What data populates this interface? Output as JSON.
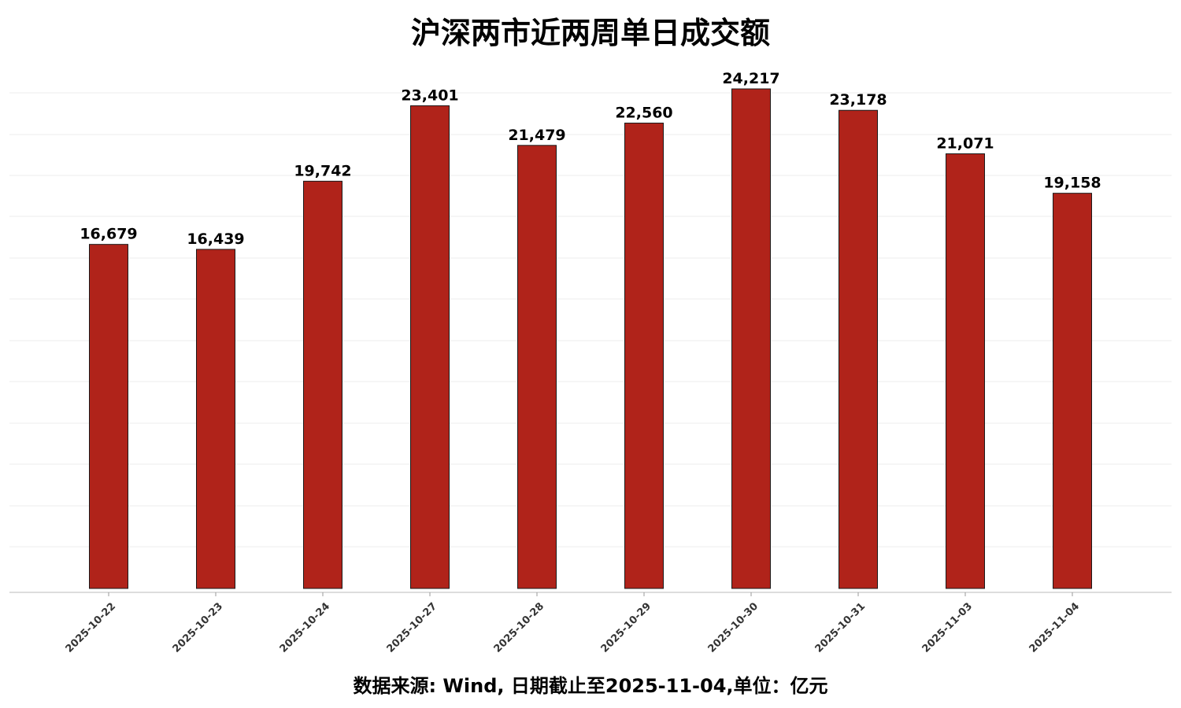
{
  "chart_data": {
    "type": "bar",
    "title": "沪深两市近两周单日成交额",
    "xlabel": "",
    "ylabel": "",
    "categories": [
      "2025-10-22",
      "2025-10-23",
      "2025-10-24",
      "2025-10-27",
      "2025-10-28",
      "2025-10-29",
      "2025-10-30",
      "2025-10-31",
      "2025-11-03",
      "2025-11-04"
    ],
    "values": [
      16679,
      16439,
      19742,
      23401,
      21479,
      22560,
      24217,
      23178,
      21071,
      19158
    ],
    "value_labels": [
      "16,679",
      "16,439",
      "19,742",
      "23,401",
      "21,479",
      "22,560",
      "24,217",
      "23,178",
      "21,071",
      "19,158"
    ],
    "ylim": [
      0,
      24217
    ],
    "grid": true,
    "legend": "none",
    "bar_color": "#b0231a",
    "bar_edge_color": "#1a1a1a",
    "footer": "数据来源: Wind, 日期截止至2025-11-04,单位：亿元"
  }
}
